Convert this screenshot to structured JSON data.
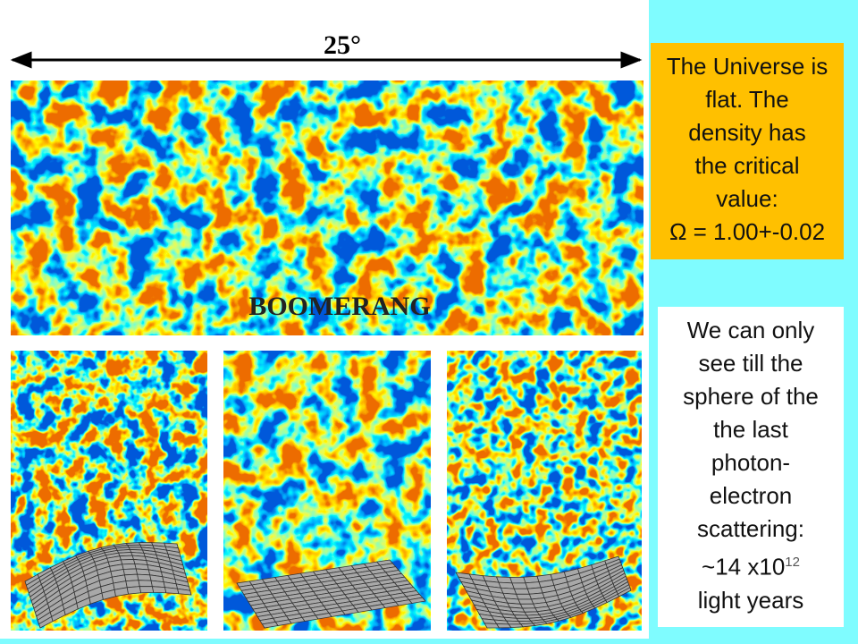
{
  "figure": {
    "angle_label": "25°",
    "map_label": "BOOMERANG"
  },
  "orange_box": {
    "lines": [
      "The Universe is",
      "flat. The",
      "density has",
      "the critical",
      "value:",
      "Ω = 1.00+-0.02"
    ]
  },
  "white_box": {
    "lines": [
      "We can only",
      "see till the",
      "sphere of the",
      "the last",
      "photon-",
      "electron",
      "scattering:"
    ],
    "distance": {
      "base": "~14 x10",
      "exponent": "12"
    },
    "unit": "light years"
  }
}
